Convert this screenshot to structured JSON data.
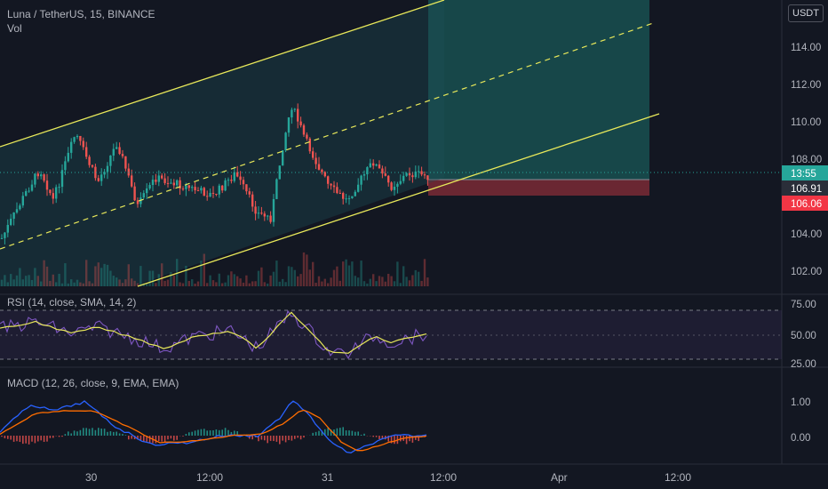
{
  "header": {
    "symbol_title": "Luna / TetherUS, 15, BINANCE",
    "vol_label": "Vol",
    "rsi_label": "RSI (14, close, SMA, 14, 2)",
    "macd_label": "MACD (12, 26, close, 9, EMA, EMA)"
  },
  "price_scale": {
    "currency_button": "USDT",
    "ticks": [
      "114.00",
      "112.00",
      "110.00",
      "108.00",
      "104.00",
      "102.00"
    ],
    "countdown_label": "13:55",
    "last_price_label": "106.91",
    "stop_price_label": "106.06"
  },
  "rsi_scale": {
    "ticks": [
      "75.00",
      "50.00",
      "25.00"
    ]
  },
  "macd_scale": {
    "ticks": [
      "1.00",
      "0.00"
    ]
  },
  "time_axis": {
    "ticks": [
      "30",
      "12:00",
      "31",
      "12:00",
      "Apr",
      "12:00"
    ]
  },
  "colors": {
    "background": "#131722",
    "up_candle": "#26a69a",
    "down_candle": "#ef5350",
    "channel_line": "#e8e85a",
    "rsi_line": "#7e57c2",
    "macd_line": "#2962ff",
    "signal_line": "#ff6d00",
    "profit_zone": "#1b6f6a",
    "loss_zone": "#7a2a35",
    "last_price_tag": "#26a69a",
    "stop_price_tag": "#f23645"
  }
}
